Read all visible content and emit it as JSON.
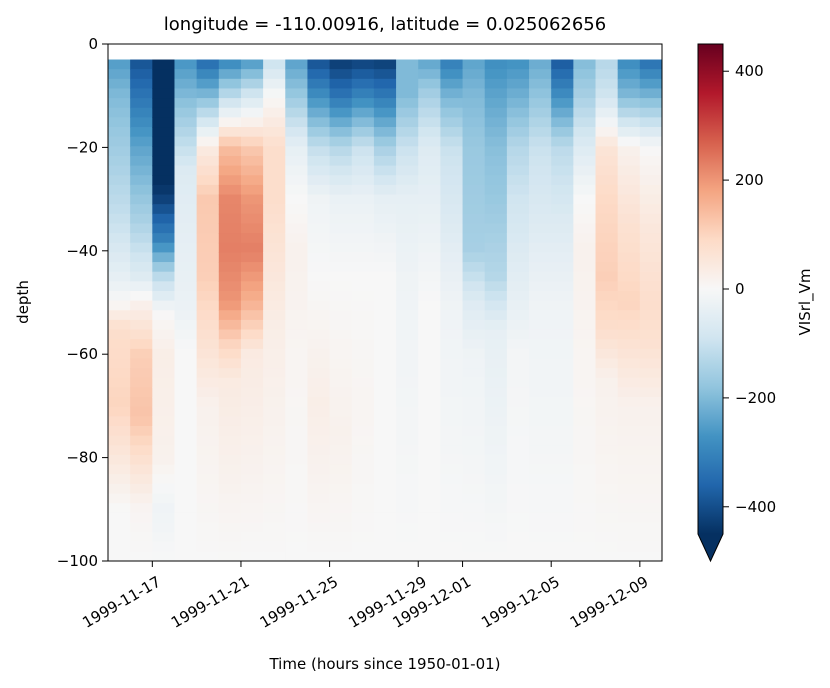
{
  "chart_data": {
    "type": "heatmap",
    "title": "longitude = -110.00916, latitude = 0.025062656",
    "xlabel": "Time (hours since 1950-01-01)",
    "ylabel": "depth",
    "colorbar_label": "VISrl_Vm",
    "colormap": "RdBu_r",
    "extend": "min",
    "vmin": -450,
    "vmax": 450,
    "ylim": [
      -100,
      0
    ],
    "x_start": "1999-11-15",
    "x_end": "1999-12-10",
    "x_ticks": [
      {
        "date": "1999-11-17",
        "label": "1999-11-17"
      },
      {
        "date": "1999-11-21",
        "label": "1999-11-21"
      },
      {
        "date": "1999-11-25",
        "label": "1999-11-25"
      },
      {
        "date": "1999-11-29",
        "label": "1999-11-29"
      },
      {
        "date": "1999-12-01",
        "label": "1999-12-01"
      },
      {
        "date": "1999-12-05",
        "label": "1999-12-05"
      },
      {
        "date": "1999-12-09",
        "label": "1999-12-09"
      }
    ],
    "y_ticks": [
      {
        "value": 0,
        "label": "0"
      },
      {
        "value": -20,
        "label": "−20"
      },
      {
        "value": -40,
        "label": "−40"
      },
      {
        "value": -60,
        "label": "−60"
      },
      {
        "value": -80,
        "label": "−80"
      },
      {
        "value": -100,
        "label": "−100"
      }
    ],
    "colorbar_ticks": [
      {
        "value": 400,
        "label": "400"
      },
      {
        "value": 200,
        "label": "200"
      },
      {
        "value": 0,
        "label": "0"
      },
      {
        "value": -200,
        "label": "−200"
      },
      {
        "value": -400,
        "label": "−400"
      }
    ],
    "time_columns": [
      "1999-11-15",
      "1999-11-16",
      "1999-11-17",
      "1999-11-18",
      "1999-11-19",
      "1999-11-20",
      "1999-11-21",
      "1999-11-22",
      "1999-11-23",
      "1999-11-24",
      "1999-11-25",
      "1999-11-26",
      "1999-11-27",
      "1999-11-28",
      "1999-11-29",
      "1999-11-30",
      "1999-12-01",
      "1999-12-02",
      "1999-12-03",
      "1999-12-04",
      "1999-12-05",
      "1999-12-06",
      "1999-12-07",
      "1999-12-08",
      "1999-12-09"
    ],
    "profiles": [
      {
        "top": [
          [
            0,
            -280
          ],
          [
            10,
            -200
          ],
          [
            20,
            -160
          ],
          [
            35,
            -100
          ],
          [
            45,
            -40
          ],
          [
            50,
            0
          ],
          [
            55,
            80
          ],
          [
            70,
            100
          ],
          [
            80,
            50
          ],
          [
            90,
            0
          ],
          [
            100,
            0
          ]
        ]
      },
      {
        "top": [
          [
            0,
            -420
          ],
          [
            10,
            -330
          ],
          [
            20,
            -240
          ],
          [
            35,
            -140
          ],
          [
            45,
            -60
          ],
          [
            50,
            20
          ],
          [
            60,
            110
          ],
          [
            72,
            130
          ],
          [
            82,
            60
          ],
          [
            90,
            10
          ],
          [
            100,
            0
          ]
        ]
      },
      {
        "top": [
          [
            0,
            -500
          ],
          [
            15,
            -480
          ],
          [
            25,
            -470
          ],
          [
            30,
            -420
          ],
          [
            38,
            -300
          ],
          [
            45,
            -120
          ],
          [
            52,
            0
          ],
          [
            60,
            30
          ],
          [
            80,
            20
          ],
          [
            90,
            -20
          ],
          [
            100,
            0
          ]
        ]
      },
      {
        "top": [
          [
            0,
            -300
          ],
          [
            12,
            -180
          ],
          [
            25,
            -60
          ],
          [
            40,
            -40
          ],
          [
            50,
            -30
          ],
          [
            60,
            0
          ],
          [
            100,
            0
          ]
        ]
      },
      {
        "top": [
          [
            0,
            -420
          ],
          [
            10,
            -200
          ],
          [
            20,
            40
          ],
          [
            30,
            120
          ],
          [
            45,
            110
          ],
          [
            60,
            60
          ],
          [
            70,
            20
          ],
          [
            100,
            0
          ]
        ]
      },
      {
        "top": [
          [
            0,
            -380
          ],
          [
            10,
            -120
          ],
          [
            20,
            140
          ],
          [
            30,
            220
          ],
          [
            40,
            230
          ],
          [
            50,
            200
          ],
          [
            58,
            100
          ],
          [
            65,
            40
          ],
          [
            100,
            0
          ]
        ]
      },
      {
        "top": [
          [
            0,
            -350
          ],
          [
            10,
            -80
          ],
          [
            20,
            120
          ],
          [
            30,
            200
          ],
          [
            40,
            230
          ],
          [
            50,
            160
          ],
          [
            60,
            40
          ],
          [
            100,
            0
          ]
        ]
      },
      {
        "top": [
          [
            0,
            -150
          ],
          [
            10,
            0
          ],
          [
            20,
            80
          ],
          [
            30,
            80
          ],
          [
            40,
            60
          ],
          [
            55,
            30
          ],
          [
            100,
            0
          ]
        ]
      },
      {
        "top": [
          [
            0,
            -280
          ],
          [
            10,
            -170
          ],
          [
            20,
            -40
          ],
          [
            30,
            0
          ],
          [
            40,
            20
          ],
          [
            60,
            10
          ],
          [
            100,
            0
          ]
        ]
      },
      {
        "top": [
          [
            0,
            -450
          ],
          [
            10,
            -280
          ],
          [
            20,
            -110
          ],
          [
            30,
            -20
          ],
          [
            45,
            0
          ],
          [
            70,
            30
          ],
          [
            100,
            0
          ]
        ]
      },
      {
        "top": [
          [
            0,
            -480
          ],
          [
            10,
            -330
          ],
          [
            20,
            -130
          ],
          [
            30,
            -30
          ],
          [
            45,
            0
          ],
          [
            75,
            20
          ],
          [
            100,
            0
          ]
        ]
      },
      {
        "top": [
          [
            0,
            -480
          ],
          [
            10,
            -300
          ],
          [
            20,
            -100
          ],
          [
            30,
            -30
          ],
          [
            45,
            0
          ],
          [
            70,
            10
          ],
          [
            100,
            0
          ]
        ]
      },
      {
        "top": [
          [
            0,
            -480
          ],
          [
            10,
            -320
          ],
          [
            20,
            -150
          ],
          [
            30,
            -40
          ],
          [
            45,
            0
          ],
          [
            100,
            0
          ]
        ]
      },
      {
        "top": [
          [
            0,
            -200
          ],
          [
            10,
            -200
          ],
          [
            20,
            -100
          ],
          [
            30,
            -40
          ],
          [
            45,
            -20
          ],
          [
            100,
            0
          ]
        ]
      },
      {
        "top": [
          [
            0,
            -280
          ],
          [
            10,
            -150
          ],
          [
            20,
            -60
          ],
          [
            35,
            -30
          ],
          [
            50,
            0
          ],
          [
            100,
            0
          ]
        ]
      },
      {
        "top": [
          [
            0,
            -360
          ],
          [
            10,
            -210
          ],
          [
            20,
            -100
          ],
          [
            35,
            -60
          ],
          [
            50,
            -20
          ],
          [
            100,
            0
          ]
        ]
      },
      {
        "top": [
          [
            0,
            -260
          ],
          [
            10,
            -200
          ],
          [
            20,
            -170
          ],
          [
            30,
            -160
          ],
          [
            40,
            -150
          ],
          [
            50,
            -60
          ],
          [
            60,
            -20
          ],
          [
            100,
            0
          ]
        ]
      },
      {
        "top": [
          [
            0,
            -300
          ],
          [
            10,
            -240
          ],
          [
            20,
            -190
          ],
          [
            30,
            -170
          ],
          [
            45,
            -130
          ],
          [
            55,
            -40
          ],
          [
            100,
            0
          ]
        ]
      },
      {
        "top": [
          [
            0,
            -300
          ],
          [
            10,
            -220
          ],
          [
            20,
            -130
          ],
          [
            30,
            -90
          ],
          [
            45,
            -50
          ],
          [
            60,
            -10
          ],
          [
            100,
            0
          ]
        ]
      },
      {
        "top": [
          [
            0,
            -250
          ],
          [
            10,
            -180
          ],
          [
            20,
            -100
          ],
          [
            35,
            -60
          ],
          [
            50,
            -20
          ],
          [
            100,
            0
          ]
        ]
      },
      {
        "top": [
          [
            0,
            -430
          ],
          [
            10,
            -280
          ],
          [
            20,
            -120
          ],
          [
            35,
            -60
          ],
          [
            50,
            -20
          ],
          [
            100,
            0
          ]
        ]
      },
      {
        "top": [
          [
            0,
            -220
          ],
          [
            10,
            -150
          ],
          [
            20,
            -60
          ],
          [
            30,
            0
          ],
          [
            40,
            20
          ],
          [
            60,
            10
          ],
          [
            100,
            0
          ]
        ]
      },
      {
        "top": [
          [
            0,
            -150
          ],
          [
            10,
            -90
          ],
          [
            20,
            60
          ],
          [
            30,
            90
          ],
          [
            45,
            110
          ],
          [
            55,
            80
          ],
          [
            65,
            20
          ],
          [
            100,
            0
          ]
        ]
      },
      {
        "top": [
          [
            0,
            -330
          ],
          [
            10,
            -200
          ],
          [
            20,
            20
          ],
          [
            35,
            70
          ],
          [
            50,
            100
          ],
          [
            60,
            60
          ],
          [
            70,
            20
          ],
          [
            100,
            0
          ]
        ]
      },
      {
        "top": [
          [
            0,
            -400
          ],
          [
            10,
            -210
          ],
          [
            20,
            0
          ],
          [
            35,
            50
          ],
          [
            50,
            80
          ],
          [
            58,
            70
          ],
          [
            70,
            20
          ],
          [
            100,
            0
          ]
        ]
      }
    ],
    "surface_blank_depth": -3
  }
}
